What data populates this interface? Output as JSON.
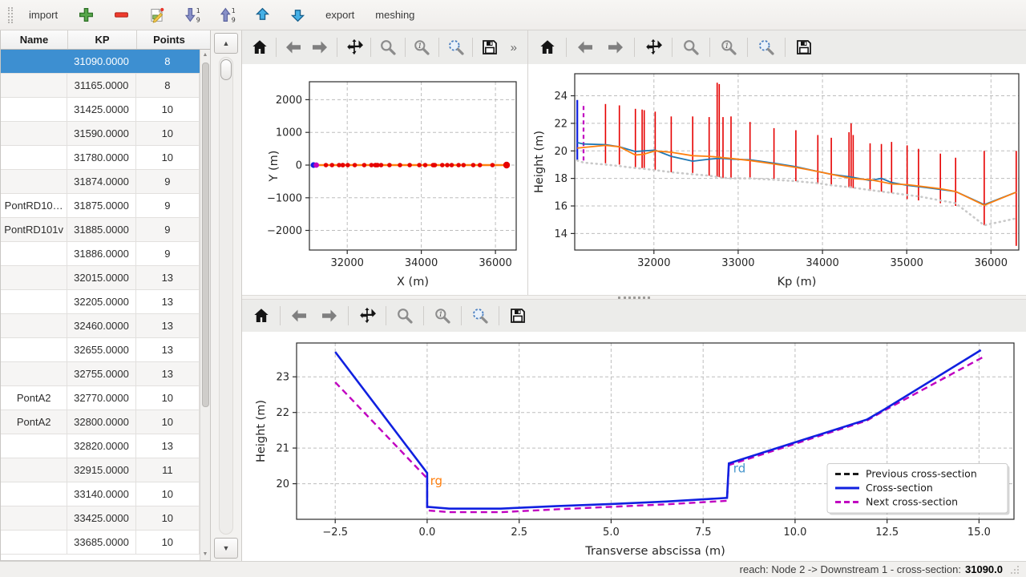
{
  "app_toolbar": {
    "import_label": "import",
    "export_label": "export",
    "meshing_label": "meshing",
    "icons": [
      "add-icon",
      "remove-icon",
      "edit-icon",
      "sort-descending-icon",
      "sort-ascending-icon",
      "move-up-icon",
      "move-down-icon"
    ]
  },
  "table": {
    "columns": [
      "Name",
      "KP",
      "Points"
    ],
    "selected_index": 0,
    "rows": [
      [
        "",
        "31090.0000",
        "8"
      ],
      [
        "",
        "31165.0000",
        "8"
      ],
      [
        "",
        "31425.0000",
        "10"
      ],
      [
        "",
        "31590.0000",
        "10"
      ],
      [
        "",
        "31780.0000",
        "10"
      ],
      [
        "",
        "31874.0000",
        "9"
      ],
      [
        "PontRD10…",
        "31875.0000",
        "9"
      ],
      [
        "PontRD101v",
        "31885.0000",
        "9"
      ],
      [
        "",
        "31886.0000",
        "9"
      ],
      [
        "",
        "32015.0000",
        "13"
      ],
      [
        "",
        "32205.0000",
        "13"
      ],
      [
        "",
        "32460.0000",
        "13"
      ],
      [
        "",
        "32655.0000",
        "13"
      ],
      [
        "",
        "32755.0000",
        "13"
      ],
      [
        "PontA2",
        "32770.0000",
        "10"
      ],
      [
        "PontA2",
        "32800.0000",
        "10"
      ],
      [
        "",
        "32820.0000",
        "13"
      ],
      [
        "",
        "32915.0000",
        "11"
      ],
      [
        "",
        "33140.0000",
        "10"
      ],
      [
        "",
        "33425.0000",
        "10"
      ],
      [
        "",
        "33685.0000",
        "10"
      ]
    ]
  },
  "plot_toolbar": {
    "buttons": [
      "home",
      "back",
      "forward",
      "pan",
      "zoom",
      "zoom-marker",
      "zoom-rect",
      "save"
    ],
    "overflow": "»"
  },
  "status_bar": {
    "text": "reach: Node 2 -> Downstream 1 - cross-section:",
    "value": "31090.0"
  },
  "chart_data": [
    {
      "id": "chart-plan",
      "type": "line",
      "title": "",
      "xlabel": "X (m)",
      "ylabel": "Y (m)",
      "xlim": [
        30980,
        36560
      ],
      "ylim": [
        -2600,
        2550
      ],
      "xticks": [
        {
          "v": 32000,
          "label": "32000"
        },
        {
          "v": 34000,
          "label": "34000"
        },
        {
          "v": 36000,
          "label": "36000"
        }
      ],
      "yticks": [
        {
          "v": -2000,
          "label": "−2000"
        },
        {
          "v": -1000,
          "label": "−1000"
        },
        {
          "v": 0,
          "label": "0"
        },
        {
          "v": 1000,
          "label": "1000"
        },
        {
          "v": 2000,
          "label": "2000"
        }
      ],
      "grid": true,
      "margins": {
        "l": 84,
        "r": 14,
        "t": 22,
        "b": 56
      },
      "series": [
        {
          "name": "reach-axis",
          "color": "#ff7f0e",
          "width": 2.4,
          "x": [
            31090,
            36300
          ],
          "y": [
            0,
            0
          ]
        },
        {
          "name": "cross-section-markers",
          "type": "scatter",
          "r": 2.8,
          "color": "#e60000",
          "x": [
            31425,
            31590,
            31780,
            31875,
            31886,
            32015,
            32205,
            32460,
            32655,
            32755,
            32770,
            32800,
            32820,
            32915,
            33140,
            33425,
            33685,
            33945,
            34105,
            34315,
            34340,
            34365,
            34565,
            34700,
            34820,
            35005,
            35140,
            35400,
            35580,
            35920
          ],
          "y0": 0
        },
        {
          "name": "end-marker",
          "type": "scatter",
          "r": 4.2,
          "color": "#e60000",
          "x": [
            36300
          ],
          "y0": 0
        },
        {
          "name": "current-cross-section-point",
          "type": "scatter",
          "r": 3.6,
          "color": "#1020e0",
          "x": [
            31090
          ],
          "y0": 0
        },
        {
          "name": "next-cross-section-point",
          "type": "scatter",
          "r": 3.4,
          "color": "#c000c0",
          "x": [
            31165
          ],
          "y0": 0
        }
      ]
    },
    {
      "id": "chart-profile",
      "type": "line",
      "title": "",
      "xlabel": "Kp (m)",
      "ylabel": "Height (m)",
      "xlim": [
        31060,
        36330
      ],
      "ylim": [
        12.8,
        25.6
      ],
      "xticks": [
        {
          "v": 32000,
          "label": "32000"
        },
        {
          "v": 33000,
          "label": "33000"
        },
        {
          "v": 34000,
          "label": "34000"
        },
        {
          "v": 35000,
          "label": "35000"
        },
        {
          "v": 36000,
          "label": "36000"
        }
      ],
      "yticks": [
        {
          "v": 14,
          "label": "14"
        },
        {
          "v": 16,
          "label": "16"
        },
        {
          "v": 18,
          "label": "18"
        },
        {
          "v": 20,
          "label": "20"
        },
        {
          "v": 22,
          "label": "22"
        },
        {
          "v": 24,
          "label": "24"
        }
      ],
      "grid": true,
      "margins": {
        "l": 58,
        "r": 8,
        "t": 12,
        "b": 56
      },
      "vline_groups": [
        {
          "name": "cross-section-extents",
          "color": "#e60000",
          "width": 1.6,
          "items": [
            [
              31425,
              19.1,
              23.4
            ],
            [
              31590,
              19.0,
              23.3
            ],
            [
              31780,
              18.8,
              23.05
            ],
            [
              31860,
              18.75,
              23.0
            ],
            [
              31885,
              18.75,
              22.95
            ],
            [
              32015,
              18.6,
              22.85
            ],
            [
              32205,
              18.45,
              22.5
            ],
            [
              32460,
              18.4,
              22.5
            ],
            [
              32655,
              18.2,
              22.45
            ],
            [
              32750,
              18.1,
              24.95
            ],
            [
              32775,
              18.1,
              24.85
            ],
            [
              32820,
              18.05,
              22.45
            ],
            [
              32915,
              18.0,
              22.5
            ],
            [
              33140,
              18.0,
              22.1
            ],
            [
              33425,
              17.9,
              21.65
            ],
            [
              33685,
              17.8,
              21.5
            ],
            [
              33945,
              17.6,
              21.15
            ],
            [
              34105,
              17.45,
              20.95
            ],
            [
              34315,
              17.35,
              21.35
            ],
            [
              34340,
              17.3,
              22.0
            ],
            [
              34365,
              17.3,
              21.15
            ],
            [
              34565,
              17.1,
              20.55
            ],
            [
              34700,
              17.05,
              20.5
            ],
            [
              34820,
              16.95,
              20.65
            ],
            [
              35005,
              16.5,
              20.4
            ],
            [
              35140,
              16.4,
              20.15
            ],
            [
              35400,
              16.2,
              19.8
            ],
            [
              35580,
              16.0,
              19.5
            ],
            [
              35920,
              14.6,
              20.0
            ],
            [
              36300,
              13.1,
              20.0
            ]
          ]
        },
        {
          "name": "current-cross-section-line",
          "color": "#1020e0",
          "width": 2.2,
          "items": [
            [
              31090,
              19.3,
              23.7
            ]
          ]
        },
        {
          "name": "next-cross-section-line",
          "color": "#c000c0",
          "width": 2.2,
          "dash": "5 4",
          "items": [
            [
              31165,
              19.3,
              23.5
            ]
          ]
        }
      ],
      "series": [
        {
          "name": "bed-level",
          "color": "#c9c9c9",
          "width": 2.6,
          "dash": "1 5",
          "linecap": "round",
          "x": [
            31090,
            31165,
            31425,
            31590,
            31780,
            31875,
            32015,
            32205,
            32460,
            32655,
            32760,
            32820,
            32915,
            33140,
            33425,
            33685,
            33945,
            34105,
            34340,
            34565,
            34700,
            34820,
            35005,
            35140,
            35400,
            35580,
            35920,
            36300
          ],
          "y": [
            19.3,
            19.15,
            19.0,
            18.9,
            18.75,
            18.7,
            18.6,
            18.45,
            18.3,
            18.2,
            18.1,
            18.05,
            18.0,
            18.0,
            17.9,
            17.8,
            17.65,
            17.5,
            17.35,
            17.15,
            17.05,
            16.95,
            16.8,
            16.7,
            16.4,
            16.2,
            14.6,
            15.1
          ]
        },
        {
          "name": "left-bank",
          "color": "#1f77b4",
          "width": 1.8,
          "x": [
            31090,
            31165,
            31425,
            31590,
            31780,
            31875,
            32015,
            32205,
            32460,
            32655,
            32760,
            32820,
            32915,
            33140,
            33425,
            33685,
            33945,
            34105,
            34340,
            34565,
            34700,
            34820,
            35005,
            35140,
            35400,
            35580,
            35920,
            36300
          ],
          "y": [
            20.6,
            20.5,
            20.45,
            20.3,
            19.95,
            20.0,
            20.05,
            19.6,
            19.25,
            19.4,
            19.45,
            19.45,
            19.4,
            19.35,
            19.1,
            18.85,
            18.5,
            18.3,
            18.1,
            17.85,
            18.0,
            17.7,
            17.5,
            17.4,
            17.2,
            17.05,
            16.1,
            17.0
          ]
        },
        {
          "name": "right-bank",
          "color": "#ff7f0e",
          "width": 1.8,
          "x": [
            31090,
            31165,
            31425,
            31590,
            31780,
            31875,
            32015,
            32205,
            32460,
            32655,
            32760,
            32820,
            32915,
            33140,
            33425,
            33685,
            33945,
            34105,
            34340,
            34565,
            34700,
            34820,
            35005,
            35140,
            35400,
            35580,
            35920,
            36300
          ],
          "y": [
            20.2,
            20.25,
            20.4,
            20.3,
            19.7,
            19.75,
            20.0,
            19.9,
            19.65,
            19.6,
            19.55,
            19.5,
            19.45,
            19.3,
            19.05,
            18.8,
            18.5,
            18.3,
            18.0,
            17.9,
            17.75,
            17.6,
            17.55,
            17.45,
            17.25,
            17.05,
            16.05,
            17.0
          ]
        }
      ]
    },
    {
      "id": "chart-cross",
      "type": "line",
      "title": "",
      "xlabel": "Transverse abscissa (m)",
      "ylabel": "Height (m)",
      "xlim": [
        -3.55,
        15.95
      ],
      "ylim": [
        19.0,
        23.95
      ],
      "xticks": [
        {
          "v": -2.5,
          "label": "−2.5"
        },
        {
          "v": 0,
          "label": "0.0"
        },
        {
          "v": 2.5,
          "label": "2.5"
        },
        {
          "v": 5,
          "label": "5.0"
        },
        {
          "v": 7.5,
          "label": "7.5"
        },
        {
          "v": 10,
          "label": "10.0"
        },
        {
          "v": 12.5,
          "label": "12.5"
        },
        {
          "v": 15,
          "label": "15.0"
        }
      ],
      "yticks": [
        {
          "v": 20,
          "label": "20"
        },
        {
          "v": 21,
          "label": "21"
        },
        {
          "v": 22,
          "label": "22"
        },
        {
          "v": 23,
          "label": "23"
        }
      ],
      "grid": true,
      "margins": {
        "l": 68,
        "r": 14,
        "t": 14,
        "b": 52
      },
      "series": [
        {
          "name": "next-cross-section",
          "color": "#c000c0",
          "width": 2.4,
          "dash": "8 5",
          "x": [
            -2.5,
            0,
            0,
            0.6,
            2.0,
            3.5,
            5.0,
            6.5,
            8.15,
            8.2,
            11.95,
            12.45,
            15.1
          ],
          "y": [
            22.85,
            20.15,
            19.25,
            19.2,
            19.2,
            19.28,
            19.35,
            19.42,
            19.52,
            20.52,
            21.77,
            22.07,
            23.55
          ]
        },
        {
          "name": "cross-section",
          "color": "#1020e0",
          "width": 2.6,
          "x": [
            -2.5,
            0,
            0,
            0.6,
            2.0,
            3.5,
            5.0,
            6.5,
            8.15,
            8.2,
            11.95,
            12.45,
            15.05
          ],
          "y": [
            23.7,
            20.3,
            19.35,
            19.3,
            19.3,
            19.37,
            19.43,
            19.5,
            19.6,
            20.57,
            21.8,
            22.1,
            23.75
          ]
        }
      ],
      "annotations": [
        {
          "text": "rg",
          "x": 0.08,
          "y": 19.97,
          "color": "#ff7f0e",
          "size": 15
        },
        {
          "text": "rd",
          "x": 8.32,
          "y": 20.32,
          "color": "#4796cc",
          "size": 15
        }
      ],
      "legend": {
        "loc": "lower-right",
        "entries": [
          {
            "label": "Previous cross-section",
            "color": "#1a1a1a",
            "dash": "7 4",
            "width": 3
          },
          {
            "label": "Cross-section",
            "color": "#1020e0",
            "width": 3
          },
          {
            "label": "Next cross-section",
            "color": "#c000c0",
            "dash": "7 4",
            "width": 3
          }
        ]
      }
    }
  ]
}
